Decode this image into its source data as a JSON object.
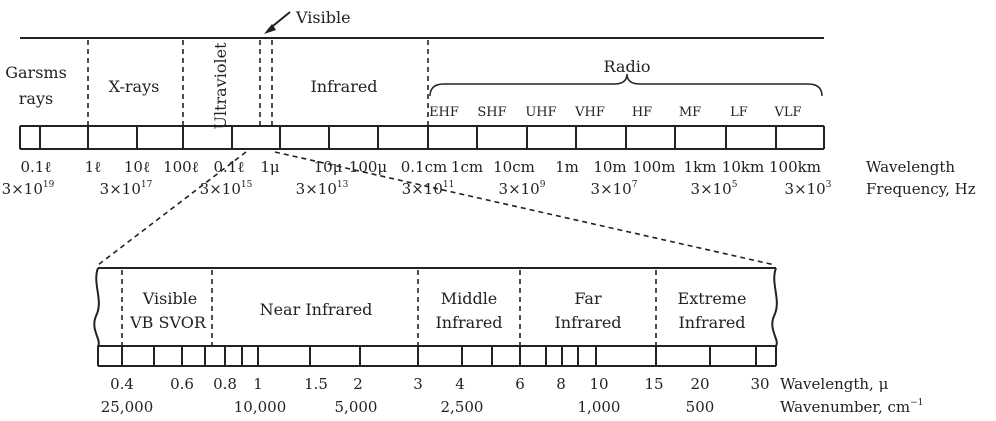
{
  "top": {
    "visible_callout": "Visible",
    "regions": {
      "gamma": [
        "Garsms",
        "rays"
      ],
      "xrays": "X-rays",
      "ultraviolet": "Ultraviolet",
      "infrared": "Infrared",
      "radio": "Radio"
    },
    "radio_bands": [
      "EHF",
      "SHF",
      "UHF",
      "VHF",
      "HF",
      "MF",
      "LF",
      "VLF"
    ],
    "wavelength_ticks": [
      "0.1ℓ",
      "1ℓ",
      "10ℓ",
      "100ℓ",
      "0.1ℓ",
      "1μ",
      "10μ",
      "100μ",
      "0.1cm",
      "1cm",
      "10cm",
      "1m",
      "10m",
      "100m",
      "1km",
      "10km",
      "100km"
    ],
    "wavelength_label": "Wavelength",
    "frequency_ticks": [
      {
        "base": "3×10",
        "exp": "19"
      },
      {
        "base": "3×10",
        "exp": "17"
      },
      {
        "base": "3×10",
        "exp": "15"
      },
      {
        "base": "3×10",
        "exp": "13"
      },
      {
        "base": "3×10",
        "exp": "11"
      },
      {
        "base": "3×10",
        "exp": "9"
      },
      {
        "base": "3×10",
        "exp": "7"
      },
      {
        "base": "3×10",
        "exp": "5"
      },
      {
        "base": "3×10",
        "exp": "3"
      }
    ],
    "frequency_label": "Frequency, Hz"
  },
  "bottom": {
    "regions": {
      "visible": [
        "Visible",
        "VB SVOR"
      ],
      "near_infrared": "Near Infrared",
      "middle_infrared": [
        "Middle",
        "Infrared"
      ],
      "far_infrared": [
        "Far",
        "Infrared"
      ],
      "extreme_infrared": [
        "Extreme",
        "Infrared"
      ]
    },
    "wavelength_ticks": [
      "0.4",
      "0.6",
      "0.8",
      "1",
      "1.5",
      "2",
      "3",
      "4",
      "6",
      "8",
      "10",
      "15",
      "20",
      "30"
    ],
    "wavelength_label": "Wavelength, μ",
    "wavenumber_ticks": [
      "25,000",
      "10,000",
      "5,000",
      "2,500",
      "1,000",
      "500"
    ],
    "wavenumber_label": "Wavenumber, cm",
    "wavenumber_exp": "−1"
  }
}
